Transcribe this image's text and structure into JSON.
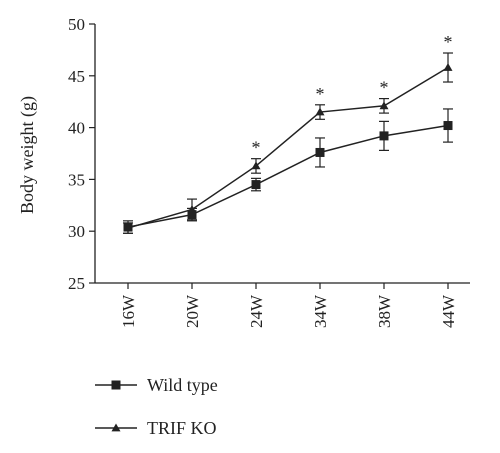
{
  "chart_data": {
    "type": "line",
    "title": "",
    "xlabel": "",
    "ylabel": "Body weight (g)",
    "ylim": [
      25,
      50
    ],
    "yticks": [
      25,
      30,
      35,
      40,
      45,
      50
    ],
    "categories": [
      "16W",
      "20W",
      "24W",
      "34W",
      "38W",
      "44W"
    ],
    "series": [
      {
        "name": "Wild type",
        "marker": "square",
        "color": "#222222",
        "values": [
          30.4,
          31.6,
          34.5,
          37.6,
          39.2,
          40.2
        ],
        "errors": [
          0.6,
          0.6,
          0.6,
          1.4,
          1.4,
          1.6
        ]
      },
      {
        "name": "TRIF KO",
        "marker": "triangle",
        "color": "#222222",
        "values": [
          30.3,
          32.1,
          36.3,
          41.5,
          42.1,
          45.8
        ],
        "errors": [
          0.5,
          1.0,
          0.7,
          0.7,
          0.7,
          1.4
        ]
      }
    ],
    "annotations": [
      {
        "category": "24W",
        "text": "*"
      },
      {
        "category": "34W",
        "text": "*"
      },
      {
        "category": "38W",
        "text": "*"
      },
      {
        "category": "44W",
        "text": "*"
      }
    ],
    "grid": false,
    "legend_position": "bottom-left"
  }
}
